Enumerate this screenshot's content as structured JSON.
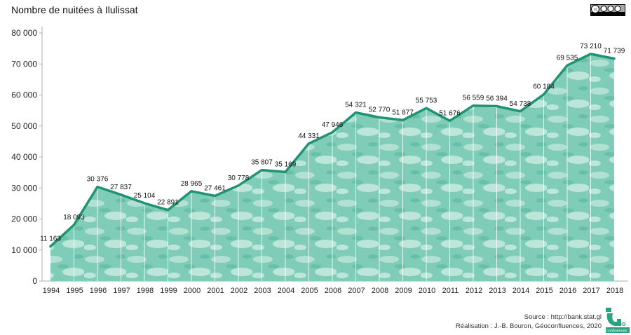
{
  "chart_data": {
    "type": "area",
    "title": "Nombre de nuitées à Ilulissat",
    "xlabel": "",
    "ylabel": "",
    "ylim": [
      0,
      80000
    ],
    "yticks": [
      0,
      10000,
      20000,
      30000,
      40000,
      50000,
      60000,
      70000,
      80000
    ],
    "ytick_labels": [
      "0",
      "10 000",
      "20 000",
      "30 000",
      "40 000",
      "50 000",
      "60 000",
      "70 000",
      "80 000"
    ],
    "grid": false,
    "categories": [
      "1994",
      "1995",
      "1996",
      "1997",
      "1998",
      "1999",
      "2000",
      "2001",
      "2002",
      "2003",
      "2004",
      "2005",
      "2006",
      "2007",
      "2008",
      "2009",
      "2010",
      "2011",
      "2012",
      "2013",
      "2014",
      "2015",
      "2016",
      "2017",
      "2018"
    ],
    "values": [
      11163,
      18093,
      30376,
      27837,
      25104,
      22891,
      28965,
      27461,
      30778,
      35807,
      35169,
      44331,
      47946,
      54321,
      52770,
      51877,
      55753,
      51676,
      56559,
      56394,
      54738,
      60184,
      69535,
      73210,
      71739
    ],
    "value_labels": [
      "11 163",
      "18 093",
      "30 376",
      "27 837",
      "25 104",
      "22 891",
      "28 965",
      "27 461",
      "30 778",
      "35 807",
      "35 169",
      "44 331",
      "47 946",
      "54 321",
      "52 770",
      "51 877",
      "55 753",
      "51 676",
      "56 559",
      "56 394",
      "54 738",
      "60 184",
      "69 535",
      "73 210",
      "71 739"
    ],
    "colors": {
      "line": "#1f9374",
      "fill": "#6cc4ad",
      "fill_light": "#bfe6db"
    }
  },
  "footer": {
    "source": "Source : http://bank.stat.gl",
    "credit": "Réalisation : J.-B. Bouron, Géoconfluences, 2020"
  },
  "license_badge": {
    "text": "cc by nc sa"
  },
  "logo": {
    "text": "Géo confluences"
  }
}
